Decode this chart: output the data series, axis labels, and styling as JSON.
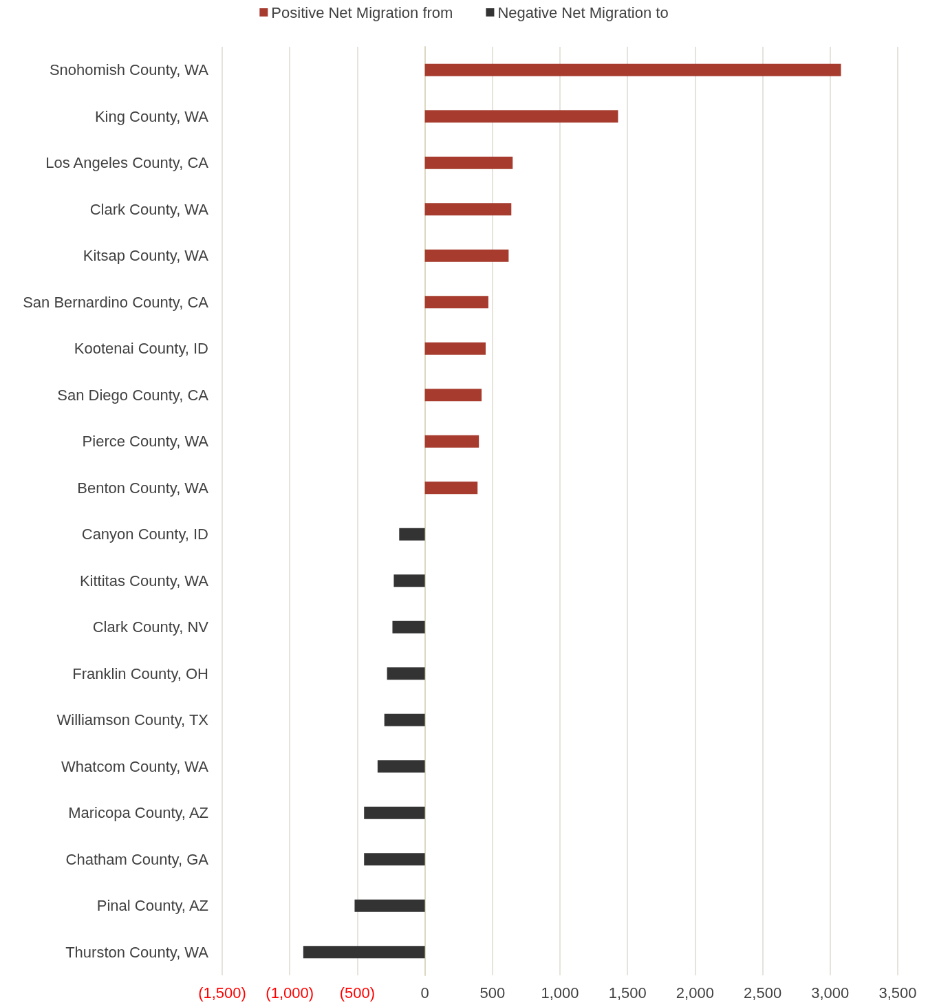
{
  "chart_data": {
    "type": "bar",
    "orientation": "horizontal",
    "stacked": true,
    "categories": [
      "Snohomish County, WA",
      "King County, WA",
      "Los Angeles County, CA",
      "Clark County, WA",
      "Kitsap County, WA",
      "San Bernardino County, CA",
      "Kootenai County, ID",
      "San Diego County, CA",
      "Pierce County, WA",
      "Benton County, WA",
      "Canyon County, ID",
      "Kittitas County, WA",
      "Clark County, NV",
      "Franklin County, OH",
      "Williamson County, TX",
      "Whatcom County, WA",
      "Maricopa County, AZ",
      "Chatham County, GA",
      "Pinal County, AZ",
      "Thurston County, WA"
    ],
    "series": [
      {
        "name": "Positive Net Migration from",
        "color": "#a63b2e",
        "values": [
          3080,
          1430,
          650,
          640,
          620,
          470,
          450,
          420,
          400,
          390,
          null,
          null,
          null,
          null,
          null,
          null,
          null,
          null,
          null,
          null
        ]
      },
      {
        "name": "Negative Net Migration to",
        "color": "#333333",
        "values": [
          null,
          null,
          null,
          null,
          null,
          null,
          null,
          null,
          null,
          null,
          -190,
          -230,
          -240,
          -280,
          -300,
          -350,
          -450,
          -450,
          -520,
          -900
        ]
      }
    ],
    "xlim": [
      -1500,
      3500
    ],
    "xticks": [
      {
        "value": -1500,
        "label": "(1,500)"
      },
      {
        "value": -1000,
        "label": "(1,000)"
      },
      {
        "value": -500,
        "label": "(500)"
      },
      0,
      500,
      {
        "value": 1000,
        "label": "1,000"
      },
      {
        "value": 1500,
        "label": "1,500"
      },
      {
        "value": 2000,
        "label": "2,000"
      },
      {
        "value": 2500,
        "label": "2,500"
      },
      {
        "value": 3000,
        "label": "3,000"
      },
      {
        "value": 3500,
        "label": "3,500"
      }
    ],
    "grid": "x",
    "legend": "top"
  }
}
